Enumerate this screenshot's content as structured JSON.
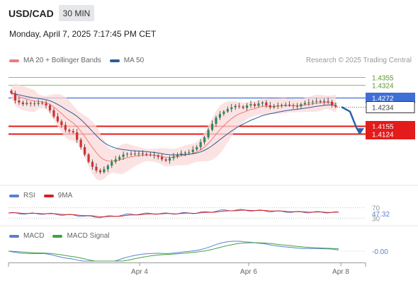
{
  "header": {
    "symbol": "USD/CAD",
    "timeframe": "30 MIN",
    "datetime": "Monday, April 7, 2025 7:17:45 PM CET",
    "credit": "Research © 2025 Trading Central"
  },
  "legends": {
    "price": [
      {
        "label": "MA 20 + Bollinger Bands",
        "color": "#f07a7a"
      },
      {
        "label": "MA 50",
        "color": "#2f5c94"
      }
    ],
    "rsi": [
      {
        "label": "RSI",
        "color": "#5b7fd1"
      },
      {
        "label": "9MA",
        "color": "#d82020"
      }
    ],
    "macd": [
      {
        "label": "MACD",
        "color": "#5b7fd1"
      },
      {
        "label": "MACD Signal",
        "color": "#3fa33f"
      }
    ]
  },
  "chart_data": {
    "type": "candlestick",
    "price_levels": [
      {
        "value": 1.4355,
        "label": "1.4355",
        "kind": "resistance-minor",
        "color": "#8fbf5a"
      },
      {
        "value": 1.4324,
        "label": "1.4324",
        "kind": "resistance-minor",
        "color": "#8fbf5a"
      },
      {
        "value": 1.4272,
        "label": "1.4272",
        "kind": "pivot",
        "color": "#3f6fd6"
      },
      {
        "value": 1.4234,
        "label": "1.4234",
        "kind": "last-price",
        "color": "#333333"
      },
      {
        "value": 1.4155,
        "label": "1.4155",
        "kind": "support",
        "color": "#e31b1b"
      },
      {
        "value": 1.4124,
        "label": "1.4124",
        "kind": "support",
        "color": "#e31b1b"
      }
    ],
    "y_range": [
      1.392,
      1.441
    ],
    "x_ticks": [
      "Apr 4",
      "Apr 6",
      "Apr 8"
    ],
    "close": [
      1.429,
      1.426,
      1.4252,
      1.4245,
      1.425,
      1.4248,
      1.4246,
      1.425,
      1.4248,
      1.424,
      1.422,
      1.4195,
      1.4175,
      1.416,
      1.414,
      1.4135,
      1.413,
      1.41,
      1.407,
      1.404,
      1.401,
      1.399,
      1.3975,
      1.3968,
      1.398,
      1.3995,
      1.401,
      1.402,
      1.403,
      1.404,
      1.4043,
      1.4041,
      1.4043,
      1.4045,
      1.4042,
      1.404,
      1.4038,
      1.4035,
      1.403,
      1.402,
      1.4015,
      1.4025,
      1.4032,
      1.404,
      1.4045,
      1.4048,
      1.405,
      1.406,
      1.407,
      1.409,
      1.411,
      1.414,
      1.4165,
      1.419,
      1.4205,
      1.4215,
      1.4225,
      1.4232,
      1.4238,
      1.4235,
      1.423,
      1.424,
      1.4245,
      1.4238,
      1.4248,
      1.4252,
      1.424,
      1.4232,
      1.4238,
      1.424,
      1.4242,
      1.4243,
      1.424,
      1.4238,
      1.4236,
      1.4245,
      1.425,
      1.4252,
      1.4255,
      1.4258,
      1.4254,
      1.4258,
      1.4255,
      1.424,
      1.4234
    ],
    "forecast": [
      1.4234,
      1.4215,
      1.415,
      1.4124
    ],
    "rsi": {
      "levels": [
        70,
        30
      ],
      "last": 47.32,
      "last_label": "47.32",
      "level_labels": [
        "70",
        "30"
      ]
    },
    "macd": {
      "last": -0.0,
      "last_label": "-0.00"
    }
  }
}
